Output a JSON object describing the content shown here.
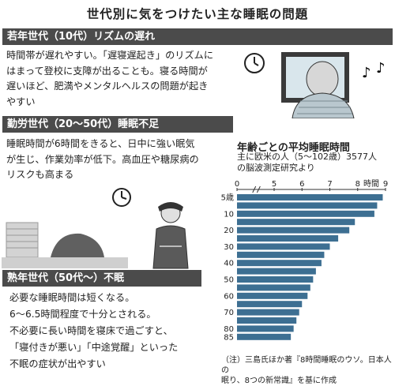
{
  "title": "世代別に気をつけたい主な睡眠の問題",
  "sections": [
    {
      "heading": "若年世代（10代）リズムの遅れ",
      "lines": [
        "時間帯が遅れやすい。「遅寝遅起き」のリズムに",
        "はまって登校に支障が出ることも。寝る時間が",
        "遅いほど、肥満やメンタルヘルスの問題が起き",
        "やすい"
      ]
    },
    {
      "heading": "勤労世代（20〜50代）睡眠不足",
      "lines": [
        "睡眠時間が6時間をきると、日中に強い眠気",
        "が生じ、作業効率が低下。高血圧や糖尿病の",
        "リスクも高まる"
      ]
    },
    {
      "heading": "熟年世代（50代〜）不眠",
      "lines": [
        "必要な睡眠時間は短くなる。",
        "6〜6.5時間程度で十分とされる。",
        "不必要に長い時間を寝床で過ごすと、",
        "「寝付きが悪い」「中途覚醒」といった",
        "不眠の症状が出やすい"
      ]
    }
  ],
  "chart": {
    "title": "年齢ごとの平均睡眠時間",
    "subtitle_lines": [
      "主に欧米の人（5〜102歳）3577人",
      "の脳波測定研究より"
    ],
    "note_lines": [
      "（注）三島氏ほか著『8時間睡眠のウソ。日本人の",
      "眠り、8つの新常識』を基に作成"
    ],
    "unit_label": "時間",
    "bar_color": "#3d6f92"
  },
  "chart_data": {
    "type": "bar",
    "orientation": "horizontal",
    "title": "年齢ごとの平均睡眠時間",
    "xlabel": "時間",
    "xlim": [
      0,
      9
    ],
    "xticks": [
      0,
      5,
      6,
      7,
      8,
      9
    ],
    "categories": [
      "5歳",
      "",
      "10",
      "",
      "20",
      "",
      "30",
      "",
      "40",
      "",
      "50",
      "",
      "60",
      "",
      "70",
      "",
      "80",
      "85"
    ],
    "values": [
      8.9,
      8.7,
      8.6,
      7.9,
      7.7,
      7.3,
      7.0,
      6.8,
      6.7,
      6.5,
      6.4,
      6.3,
      6.2,
      6.0,
      5.9,
      5.8,
      5.7,
      5.6
    ]
  },
  "colors": {
    "header_bg": "#4b4b4b",
    "bar": "#3d6f92",
    "gray_illust": "#cfcfcf"
  }
}
